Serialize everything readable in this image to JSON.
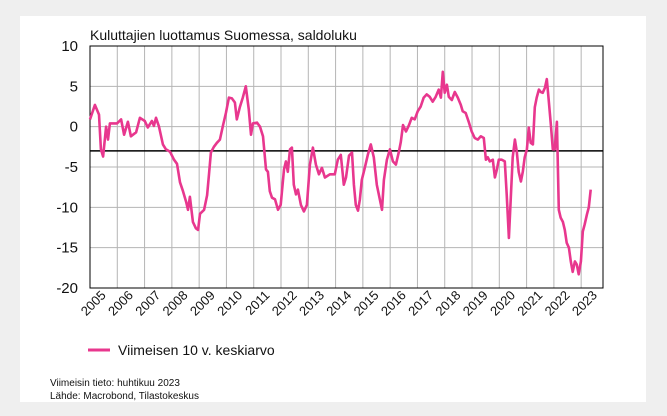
{
  "chart_data": {
    "type": "line",
    "title": "Kuluttajien luottamus Suomessa, saldoluku",
    "notes": [
      "Viimeisin tieto: huhtikuu 2023",
      "Lähde: Macrobond, Tilastokeskus"
    ],
    "xlim": [
      2005,
      2023.8
    ],
    "xticks": [
      2005,
      2006,
      2007,
      2008,
      2009,
      2010,
      2011,
      2012,
      2013,
      2014,
      2015,
      2016,
      2017,
      2018,
      2019,
      2020,
      2021,
      2022,
      2023
    ],
    "ylim": [
      -20,
      10
    ],
    "yticks": [
      -20,
      -15,
      -10,
      -5,
      0,
      5,
      10
    ],
    "grid": true,
    "reference_line": -3,
    "reference_color": "#000000",
    "legend": "bottom-left",
    "series": [
      {
        "name": "Viimeisen 10 v. keskiarvo",
        "color": "#e8378e",
        "x": [
          2005.0,
          2005.18,
          2005.33,
          2005.4,
          2005.48,
          2005.59,
          2005.66,
          2005.73,
          2005.99,
          2006.14,
          2006.25,
          2006.39,
          2006.5,
          2006.69,
          2006.83,
          2007.01,
          2007.12,
          2007.27,
          2007.34,
          2007.42,
          2007.53,
          2007.67,
          2007.78,
          2007.93,
          2008.08,
          2008.19,
          2008.3,
          2008.41,
          2008.52,
          2008.59,
          2008.66,
          2008.77,
          2008.88,
          2008.96,
          2009.03,
          2009.18,
          2009.29,
          2009.36,
          2009.43,
          2009.54,
          2009.65,
          2009.76,
          2009.87,
          2009.98,
          2010.09,
          2010.2,
          2010.31,
          2010.38,
          2010.49,
          2010.6,
          2010.71,
          2010.82,
          2010.9,
          2010.97,
          2011.12,
          2011.23,
          2011.34,
          2011.45,
          2011.52,
          2011.59,
          2011.67,
          2011.78,
          2011.89,
          2011.99,
          2012.11,
          2012.18,
          2012.25,
          2012.33,
          2012.4,
          2012.47,
          2012.55,
          2012.62,
          2012.73,
          2012.84,
          2012.95,
          2013.06,
          2013.17,
          2013.28,
          2013.39,
          2013.5,
          2013.61,
          2013.79,
          2013.97,
          2014.08,
          2014.19,
          2014.3,
          2014.38,
          2014.49,
          2014.6,
          2014.67,
          2014.74,
          2014.82,
          2014.89,
          2014.96,
          2015.07,
          2015.18,
          2015.29,
          2015.4,
          2015.51,
          2015.62,
          2015.7,
          2015.77,
          2015.88,
          2015.99,
          2016.1,
          2016.21,
          2016.32,
          2016.39,
          2016.47,
          2016.58,
          2016.69,
          2016.79,
          2016.9,
          2017.01,
          2017.12,
          2017.23,
          2017.34,
          2017.45,
          2017.56,
          2017.67,
          2017.78,
          2017.86,
          2017.93,
          2018.0,
          2018.08,
          2018.15,
          2018.26,
          2018.37,
          2018.48,
          2018.59,
          2018.66,
          2018.77,
          2018.88,
          2018.99,
          2019.1,
          2019.21,
          2019.32,
          2019.43,
          2019.51,
          2019.58,
          2019.65,
          2019.76,
          2019.84,
          2019.91,
          2019.98,
          2020.09,
          2020.2,
          2020.27,
          2020.35,
          2020.42,
          2020.49,
          2020.57,
          2020.64,
          2020.71,
          2020.79,
          2020.86,
          2020.93,
          2021.01,
          2021.08,
          2021.15,
          2021.23,
          2021.3,
          2021.37,
          2021.45,
          2021.52,
          2021.59,
          2021.67,
          2021.74,
          2021.81,
          2021.89,
          2021.96,
          2022.03,
          2022.11,
          2022.18,
          2022.25,
          2022.33,
          2022.4,
          2022.47,
          2022.55,
          2022.62,
          2022.69,
          2022.77,
          2022.84,
          2022.91,
          2022.99,
          2023.06,
          2023.13,
          2023.21,
          2023.28,
          2023.35
        ],
        "values": [
          0.9,
          2.7,
          1.5,
          -2.8,
          -3.7,
          0,
          -1.6,
          0.4,
          0.4,
          0.9,
          -1,
          0.6,
          -1.2,
          -0.7,
          1.1,
          0.7,
          -0.1,
          0.7,
          0.1,
          1.1,
          0,
          -2.2,
          -2.8,
          -3.1,
          -4.1,
          -4.6,
          -6.9,
          -8,
          -9.3,
          -10.3,
          -8.7,
          -11.8,
          -12.6,
          -12.8,
          -10.8,
          -10.3,
          -8.5,
          -5.9,
          -3.2,
          -2.5,
          -2,
          -1.6,
          0.1,
          1.7,
          3.6,
          3.5,
          3,
          0.9,
          2.4,
          3.6,
          5,
          2.1,
          -1,
          0.4,
          0.5,
          0,
          -1.2,
          -5.3,
          -5.6,
          -8,
          -8.8,
          -9,
          -10.3,
          -9.7,
          -5.3,
          -4.3,
          -5.6,
          -2.8,
          -2.6,
          -7.2,
          -8.4,
          -7.8,
          -9.7,
          -10.5,
          -9.7,
          -4.7,
          -2.6,
          -4.7,
          -5.9,
          -5.1,
          -6.3,
          -5.9,
          -5.9,
          -4.1,
          -3.5,
          -7.2,
          -6.3,
          -3.6,
          -3.2,
          -7.2,
          -9.7,
          -10.4,
          -9,
          -6.6,
          -5.1,
          -3.5,
          -2.2,
          -3.8,
          -7.2,
          -9,
          -10.3,
          -6.6,
          -4.1,
          -2.8,
          -4.3,
          -4.7,
          -3.1,
          -1.9,
          0.2,
          -0.6,
          0.2,
          1.1,
          0.9,
          1.9,
          2.5,
          3.6,
          4,
          3.7,
          3.1,
          3.7,
          4.6,
          3.6,
          6.8,
          4.2,
          5.2,
          3.7,
          3.3,
          4.3,
          3.6,
          2.7,
          1.9,
          1.7,
          0.6,
          -0.6,
          -1.4,
          -1.6,
          -1.2,
          -1.4,
          -4.1,
          -3.8,
          -4.3,
          -4.1,
          -6.3,
          -5.3,
          -4.1,
          -4.1,
          -4.3,
          -8.4,
          -13.8,
          -8.8,
          -3.8,
          -1.6,
          -3.1,
          -5.6,
          -6.8,
          -5.6,
          -3.8,
          -2.8,
          -0.1,
          -2,
          -2.2,
          2.4,
          3.6,
          4.6,
          4.3,
          4.2,
          4.8,
          5.9,
          3.3,
          0.2,
          -2.8,
          -2.8,
          0.6,
          -10.3,
          -11.3,
          -11.8,
          -12.8,
          -14.4,
          -15,
          -16.7,
          -18,
          -16.7,
          -17.1,
          -18.3,
          -16.7,
          -13,
          -12.1,
          -10.9,
          -10,
          -7.8
        ]
      }
    ]
  }
}
